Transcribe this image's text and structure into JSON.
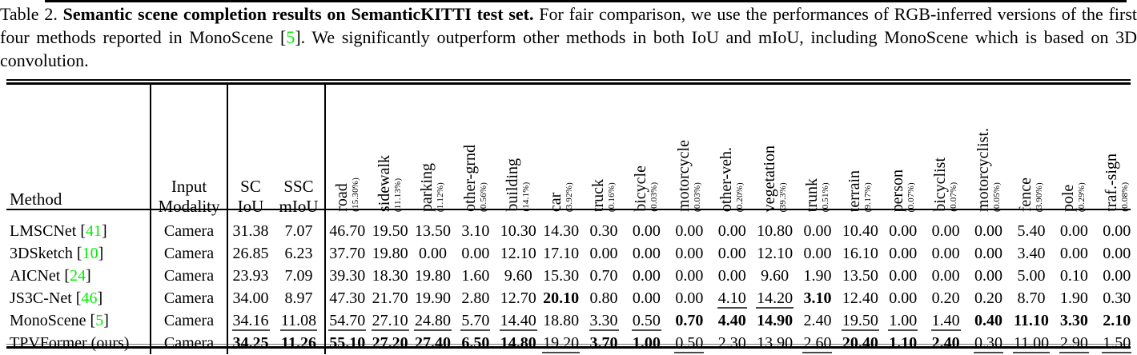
{
  "caption": {
    "label": "Table 2. ",
    "title": "Semantic scene completion results on SemanticKITTI test set.",
    "after_title": " For fair comparison, we use the performances of RGB-inferred versions of the first four methods reported in MonoScene [",
    "cite": "5",
    "after_cite": "]. We significantly outperform other methods in both IoU and mIoU, including MonoScene which is based on 3D convolution."
  },
  "colors": {
    "citation_green": "#00ee00",
    "text": "#000000",
    "background": "#ffffff"
  },
  "table": {
    "cite_open": " [",
    "cite_close": "]",
    "headers": {
      "method": "Method",
      "modality": [
        "Input",
        "Modality"
      ],
      "sc": [
        "SC",
        "IoU"
      ],
      "ssc": [
        "SSC",
        "mIoU"
      ],
      "classes": [
        {
          "name": "road",
          "pct": "(15.30%)"
        },
        {
          "name": "sidewalk",
          "pct": "(11.13%)"
        },
        {
          "name": "parking",
          "pct": "(1.12%)"
        },
        {
          "name": "other-grnd",
          "pct": "(0.56%)"
        },
        {
          "name": "building",
          "pct": "(14.1%)"
        },
        {
          "name": "car",
          "pct": "(3.92%)"
        },
        {
          "name": "truck",
          "pct": "(0.16%)"
        },
        {
          "name": "bicycle",
          "pct": "(0.03%)"
        },
        {
          "name": "motorcycle",
          "pct": "(0.03%)"
        },
        {
          "name": "other-veh.",
          "pct": "(0.20%)"
        },
        {
          "name": "vegetation",
          "pct": "(39.3%)"
        },
        {
          "name": "trunk",
          "pct": "(0.51%)"
        },
        {
          "name": "terrain",
          "pct": "(9.17%)"
        },
        {
          "name": "person",
          "pct": "(0.07%)"
        },
        {
          "name": "bicyclist",
          "pct": "(0.07%)"
        },
        {
          "name": "motorcyclist.",
          "pct": "(0.05%)"
        },
        {
          "name": "fence",
          "pct": "(3.90%)"
        },
        {
          "name": "pole",
          "pct": "(0.29%)"
        },
        {
          "name": "traf.-sign",
          "pct": "(0.08%)"
        }
      ]
    },
    "rows": [
      {
        "method": "LMSCNet",
        "cite": "41",
        "modality": "Camera",
        "sc": "31.38",
        "sc_s": "",
        "ssc": "7.07",
        "ssc_s": "",
        "values": [
          "46.70",
          "19.50",
          "13.50",
          "3.10",
          "10.30",
          "14.30",
          "0.30",
          "0.00",
          "0.00",
          "0.00",
          "10.80",
          "0.00",
          "10.40",
          "0.00",
          "0.00",
          "0.00",
          "5.40",
          "0.00",
          "0.00"
        ],
        "styles": [
          "",
          "",
          "",
          "",
          "",
          "",
          "",
          "",
          "",
          "",
          "",
          "",
          "",
          "",
          "",
          "",
          "",
          "",
          ""
        ]
      },
      {
        "method": "3DSketch",
        "cite": "10",
        "modality": "Camera",
        "sc": "26.85",
        "sc_s": "",
        "ssc": "6.23",
        "ssc_s": "",
        "values": [
          "37.70",
          "19.80",
          "0.00",
          "0.00",
          "12.10",
          "17.10",
          "0.00",
          "0.00",
          "0.00",
          "0.00",
          "12.10",
          "0.00",
          "16.10",
          "0.00",
          "0.00",
          "0.00",
          "3.40",
          "0.00",
          "0.00"
        ],
        "styles": [
          "",
          "",
          "",
          "",
          "",
          "",
          "",
          "",
          "",
          "",
          "",
          "",
          "",
          "",
          "",
          "",
          "",
          "",
          ""
        ]
      },
      {
        "method": "AICNet",
        "cite": "24",
        "modality": "Camera",
        "sc": "23.93",
        "sc_s": "",
        "ssc": "7.09",
        "ssc_s": "",
        "values": [
          "39.30",
          "18.30",
          "19.80",
          "1.60",
          "9.60",
          "15.30",
          "0.70",
          "0.00",
          "0.00",
          "0.00",
          "9.60",
          "1.90",
          "13.50",
          "0.00",
          "0.00",
          "0.00",
          "5.00",
          "0.10",
          "0.00"
        ],
        "styles": [
          "",
          "",
          "",
          "",
          "",
          "",
          "",
          "",
          "",
          "",
          "",
          "",
          "",
          "",
          "",
          "",
          "",
          "",
          ""
        ]
      },
      {
        "method": "JS3C-Net",
        "cite": "46",
        "modality": "Camera",
        "sc": "34.00",
        "sc_s": "",
        "ssc": "8.97",
        "ssc_s": "",
        "values": [
          "47.30",
          "21.70",
          "19.90",
          "2.80",
          "12.70",
          "20.10",
          "0.80",
          "0.00",
          "0.00",
          "4.10",
          "14.20",
          "3.10",
          "12.40",
          "0.00",
          "0.20",
          "0.20",
          "8.70",
          "1.90",
          "0.30"
        ],
        "styles": [
          "",
          "",
          "",
          "",
          "",
          "b",
          "",
          "",
          "",
          "u",
          "u",
          "b",
          "",
          "",
          "",
          "",
          "",
          "",
          ""
        ]
      },
      {
        "method": "MonoScene",
        "cite": "5",
        "modality": "Camera",
        "sc": "34.16",
        "sc_s": "u",
        "ssc": "11.08",
        "ssc_s": "u",
        "values": [
          "54.70",
          "27.10",
          "24.80",
          "5.70",
          "14.40",
          "18.80",
          "3.30",
          "0.50",
          "0.70",
          "4.40",
          "14.90",
          "2.40",
          "19.50",
          "1.00",
          "1.40",
          "0.40",
          "11.10",
          "3.30",
          "2.10"
        ],
        "styles": [
          "u",
          "u",
          "u",
          "u",
          "u",
          "",
          "u",
          "u",
          "b",
          "b",
          "b",
          "",
          "u",
          "u",
          "u",
          "b",
          "b",
          "b",
          "b"
        ]
      },
      {
        "method": "TPVFormer (ours)",
        "cite": "",
        "modality": "Camera",
        "sc": "34.25",
        "sc_s": "b",
        "ssc": "11.26",
        "ssc_s": "b",
        "values": [
          "55.10",
          "27.20",
          "27.40",
          "6.50",
          "14.80",
          "19.20",
          "3.70",
          "1.00",
          "0.50",
          "2.30",
          "13.90",
          "2.60",
          "20.40",
          "1.10",
          "2.40",
          "0.30",
          "11.00",
          "2.90",
          "1.50"
        ],
        "styles": [
          "b",
          "b",
          "b",
          "b",
          "b",
          "u",
          "b",
          "b",
          "u",
          "",
          "",
          "u",
          "b",
          "b",
          "b",
          "u",
          "u",
          "u",
          "u"
        ]
      }
    ]
  }
}
